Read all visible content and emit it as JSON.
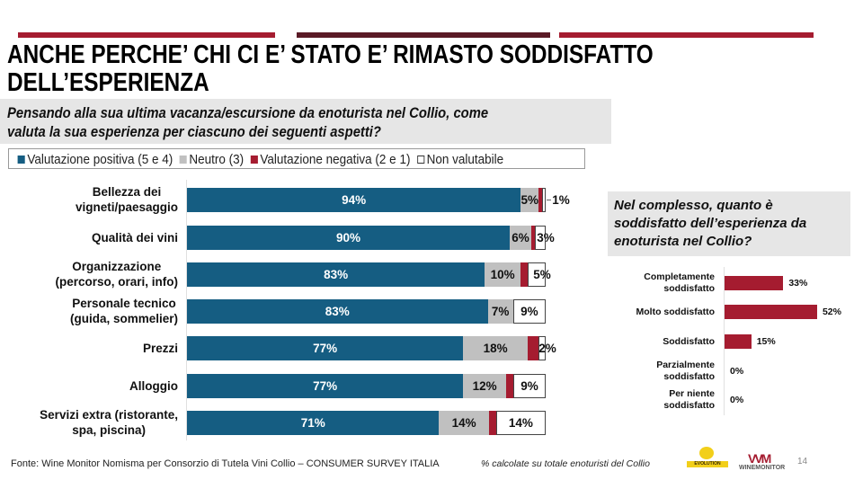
{
  "header": {
    "title_line1": "ANCHE PERCHE’ CHI CI E’ STATO E’ RIMASTO SODDISFATTO",
    "title_line2": "DELL’ESPERIENZA",
    "question_line1": "Pensando alla sua ultima vacanza/escursione da enoturista nel Collio, come",
    "question_line2": "valuta la sua esperienza per ciascuno dei seguenti aspetti?"
  },
  "colors": {
    "positive": "#155d82",
    "neutral": "#c0c0c0",
    "negative": "#a51c30",
    "not_rated": "#ffffff",
    "deco_red": "#a51c30",
    "deco_dark": "#5a1a26"
  },
  "chart_data": [
    {
      "type": "bar",
      "orientation": "horizontal",
      "stacked": true,
      "legend_position": "top",
      "categories": [
        [
          "Bellezza dei",
          "vigneti/paesaggio"
        ],
        [
          "Qualità dei vini"
        ],
        [
          "Organizzazione",
          "(percorso, orari, info)"
        ],
        [
          "Personale tecnico",
          "(guida, sommelier)"
        ],
        [
          "Prezzi"
        ],
        [
          "Alloggio"
        ],
        [
          "Servizi extra (ristorante,",
          "spa, piscina)"
        ]
      ],
      "series": [
        {
          "name": "Valutazione positiva (5 e 4)",
          "values": [
            94,
            90,
            83,
            83,
            77,
            77,
            71
          ],
          "labels": [
            "94%",
            "90%",
            "83%",
            "83%",
            "77%",
            "77%",
            "71%"
          ]
        },
        {
          "name": "Neutro (3)",
          "values": [
            5,
            6,
            10,
            7,
            18,
            12,
            14
          ],
          "labels": [
            "5%",
            "6%",
            "10%",
            "7%",
            "18%",
            "12%",
            "14%"
          ]
        },
        {
          "name": "Valutazione negativa (2 e 1)",
          "values": [
            1,
            1,
            2,
            0,
            3,
            2,
            2
          ]
        },
        {
          "name": "Non valutabile",
          "values": [
            1,
            3,
            5,
            9,
            2,
            9,
            14
          ],
          "labels": [
            "1%",
            "3%",
            "5%",
            "9%",
            "2%",
            "9%",
            "14%"
          ]
        }
      ],
      "xlim": [
        0,
        100
      ]
    },
    {
      "type": "bar",
      "orientation": "horizontal",
      "title_lines": [
        "Nel complesso, quanto è",
        "soddisfatto dell’esperienza da",
        "enoturista nel Collio?"
      ],
      "categories": [
        [
          "Completamente",
          "soddisfatto"
        ],
        [
          "Molto soddisfatto"
        ],
        [
          "Soddisfatto"
        ],
        [
          "Parzialmente",
          "soddisfatto"
        ],
        [
          "Per niente",
          "soddisfatto"
        ]
      ],
      "values": [
        33,
        52,
        15,
        0,
        0
      ],
      "labels": [
        "33%",
        "52%",
        "15%",
        "0%",
        "0%"
      ]
    }
  ],
  "footer": {
    "source": "Fonte: Wine Monitor Nomisma per Consorzio di Tutela Vini Collio – CONSUMER SURVEY ITALIA",
    "note": "% calcolate su totale enoturisti del Collio",
    "page_number": "14",
    "logo1_text": "EVOLUTION",
    "logo2_text": "WINEMONITOR"
  }
}
